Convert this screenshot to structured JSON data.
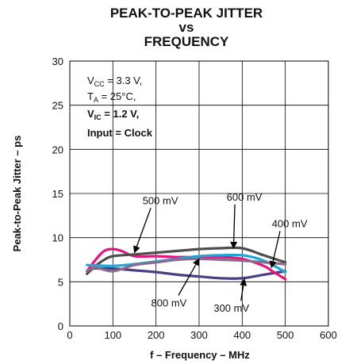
{
  "chart_data": {
    "type": "line",
    "title_lines": [
      "PEAK-TO-PEAK JITTER",
      "vs",
      "FREQUENCY"
    ],
    "xlabel": "f – Frequency – MHz",
    "ylabel": "Peak-to-Peak Jitter – ps",
    "xlim": [
      0,
      600
    ],
    "ylim": [
      0,
      30
    ],
    "xticks": [
      "0",
      "100",
      "200",
      "300",
      "400",
      "500",
      "600"
    ],
    "yticks": [
      "0",
      "5",
      "10",
      "15",
      "20",
      "25",
      "30"
    ],
    "grid": true,
    "conditions": {
      "vcc": {
        "main": "V",
        "sub": "CC",
        "rest": " = 3.3 V,"
      },
      "ta": {
        "main": "T",
        "sub": "A",
        "rest": " = 25°C,"
      },
      "vic": {
        "main": "V",
        "sub": "IC",
        "rest": " = 1.2 V,"
      },
      "input": "Input = Clock"
    },
    "series": [
      {
        "name": "300 mV",
        "color": "#4a3f86",
        "x": [
          50,
          100,
          150,
          200,
          250,
          300,
          350,
          400,
          450,
          500
        ],
        "y": [
          6.5,
          6.5,
          6.3,
          6.1,
          5.8,
          5.6,
          5.4,
          5.4,
          5.8,
          6.2
        ]
      },
      {
        "name": "400 mV",
        "color": "#e4157d",
        "x": [
          40,
          60,
          80,
          100,
          120,
          150,
          200,
          250,
          300,
          350,
          400,
          450,
          470,
          500
        ],
        "y": [
          6.2,
          7.5,
          8.5,
          8.7,
          8.5,
          7.9,
          7.9,
          7.8,
          7.8,
          7.8,
          7.6,
          6.8,
          6.2,
          5.3
        ]
      },
      {
        "name": "500 mV",
        "color": "#4d4d4d",
        "x": [
          40,
          60,
          80,
          100,
          150,
          200,
          250,
          300,
          350,
          400,
          450,
          500
        ],
        "y": [
          5.9,
          6.8,
          7.5,
          7.9,
          8.1,
          8.3,
          8.5,
          8.7,
          8.8,
          8.8,
          8.0,
          7.2
        ]
      },
      {
        "name": "600 mV",
        "color": "#1fa5d8",
        "x": [
          40,
          100,
          150,
          200,
          250,
          300,
          350,
          400,
          450,
          500
        ],
        "y": [
          6.9,
          6.8,
          7.0,
          7.3,
          7.6,
          7.9,
          8.0,
          8.0,
          7.4,
          6.1
        ]
      },
      {
        "name": "800 mV",
        "color": "#8c6a8e",
        "x": [
          40,
          60,
          100,
          150,
          200,
          250,
          300,
          350,
          400,
          450,
          500
        ],
        "y": [
          6.2,
          6.6,
          6.2,
          6.9,
          7.2,
          7.5,
          7.6,
          7.5,
          7.4,
          7.2,
          7.0
        ]
      }
    ],
    "annotations": [
      {
        "text": "500 mV",
        "tx": 210,
        "ty": 13.8,
        "ax": 150,
        "ay": 8.3
      },
      {
        "text": "600 mV",
        "tx": 405,
        "ty": 14.2,
        "ax": 380,
        "ay": 8.8
      },
      {
        "text": "400 mV",
        "tx": 510,
        "ty": 11.2,
        "ax": 468,
        "ay": 6.6
      },
      {
        "text": "800 mV",
        "tx": 230,
        "ty": 2.2,
        "ax": 300,
        "ay": 7.6
      },
      {
        "text": "300 mV",
        "tx": 375,
        "ty": 1.6,
        "ax": 405,
        "ay": 5.3
      }
    ]
  }
}
